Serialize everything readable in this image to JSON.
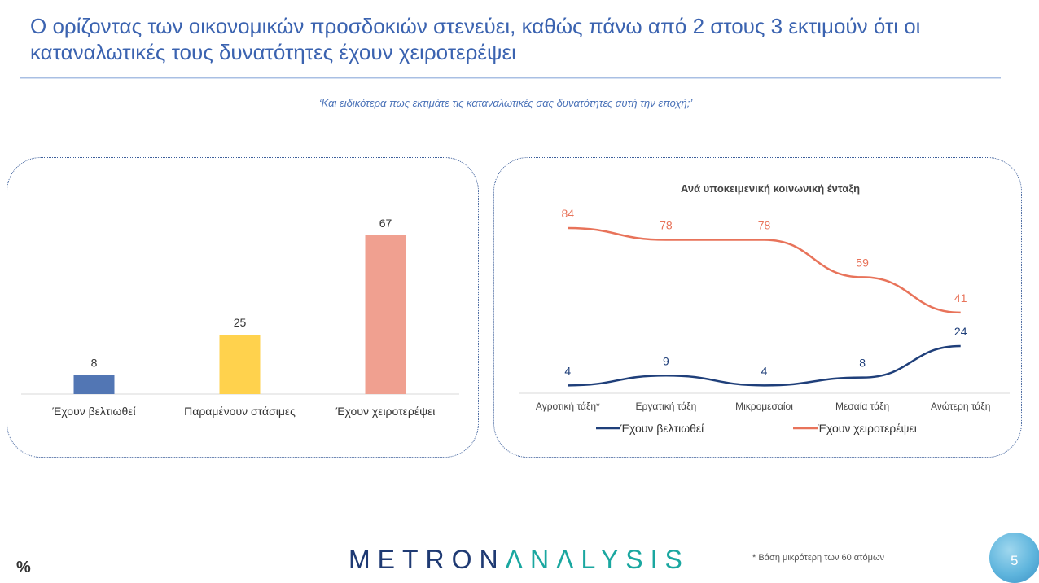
{
  "title": "Ο ορίζοντας των οικονομικών προσδοκιών στενεύει, καθώς πάνω από 2 στους 3 εκτιμούν ότι οι καταναλωτικές τους δυνατότητες έχουν χειροτερέψει",
  "question": "‘Και ειδικότερα πως εκτιμάτε τις καταναλωτικές σας δυνατότητες αυτή την εποχή;’",
  "chart_data": [
    {
      "type": "bar",
      "categories": [
        "Έχουν βελτιωθεί",
        "Παραμένουν στάσιμες",
        "Έχουν χειροτερέψει"
      ],
      "values": [
        8,
        25,
        67
      ],
      "colors": [
        "#5276b4",
        "#ffd24d",
        "#f0a090"
      ],
      "title": "",
      "xlabel": "",
      "ylabel": "",
      "ylim": [
        0,
        67
      ],
      "grid": false,
      "data_labels": true
    },
    {
      "type": "line",
      "title": "Ανά υποκειμενική κοινωνική ένταξη",
      "categories": [
        "Αγροτική τάξη*",
        "Εργατική τάξη",
        "Μικρομεσαίοι",
        "Μεσαία τάξη",
        "Ανώτερη τάξη"
      ],
      "series": [
        {
          "name": "Έχουν βελτιωθεί",
          "values": [
            4,
            9,
            4,
            8,
            24
          ],
          "color": "#1f3f7a"
        },
        {
          "name": "Έχουν χειροτερέψει",
          "values": [
            84,
            78,
            78,
            59,
            41
          ],
          "color": "#e8735a"
        }
      ],
      "ylim": [
        0,
        84
      ],
      "grid": false,
      "legend": "bottom",
      "data_labels": true
    }
  ],
  "footer": {
    "unit_symbol": "%",
    "brand_main": "METRON",
    "brand_accent": "ΛNΛLYSIS",
    "footnote": "*  Βάση μικρότερη των 60 ατόμων",
    "page_number": "5"
  }
}
